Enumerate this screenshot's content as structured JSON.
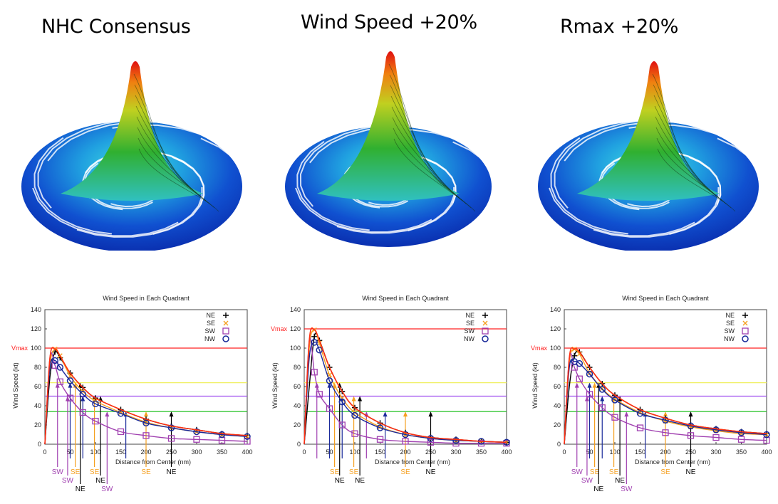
{
  "panels": [
    {
      "title": "NHC Consensus"
    },
    {
      "title": "Wind Speed +20%"
    },
    {
      "title": "Rmax +20%"
    }
  ],
  "quadrant_colors": {
    "NE": "#000000",
    "SE": "#f5a020",
    "SW": "#a040b0",
    "NW": "#1a2a9a"
  },
  "threshold_colors": {
    "vmax": "#ff2020",
    "64": "#f0f060",
    "50": "#a050f0",
    "34": "#20c020"
  },
  "chart_data": [
    {
      "type": "line",
      "title": "Wind Speed in Each Quadrant",
      "xlabel": "Distance from Center (nm)",
      "ylabel": "Wind Speed (kt)",
      "xlim": [
        0,
        400
      ],
      "ylim": [
        0,
        140
      ],
      "xticks": [
        0,
        50,
        100,
        150,
        200,
        250,
        300,
        350,
        400
      ],
      "yticks": [
        0,
        20,
        40,
        60,
        80,
        100,
        120,
        140
      ],
      "legend": "top-right",
      "vmax_label": "Vmax",
      "vmax": 100,
      "thresholds": [
        64,
        50,
        34
      ],
      "x": [
        0,
        10,
        20,
        30,
        50,
        75,
        100,
        150,
        200,
        250,
        300,
        350,
        400
      ],
      "series": [
        {
          "name": "NE",
          "values": [
            0,
            70,
            96,
            90,
            74,
            59,
            48,
            36,
            26,
            19,
            15,
            11,
            9
          ]
        },
        {
          "name": "SE",
          "values": [
            0,
            82,
            99,
            92,
            71,
            55,
            45,
            33,
            23,
            17,
            13,
            10,
            8
          ]
        },
        {
          "name": "SW",
          "values": [
            0,
            90,
            82,
            65,
            48,
            33,
            24,
            13,
            9,
            6,
            5,
            4,
            3
          ]
        },
        {
          "name": "NW",
          "values": [
            0,
            80,
            87,
            80,
            66,
            52,
            42,
            32,
            22,
            17,
            13,
            10,
            8
          ]
        }
      ],
      "radii": [
        {
          "quadrant": "SW",
          "threshold": 64,
          "x": 25,
          "label": "SW"
        },
        {
          "quadrant": "SW",
          "threshold": 50,
          "x": 45,
          "label": "SW"
        },
        {
          "quadrant": "NW",
          "threshold": 64,
          "x": 50,
          "label": ""
        },
        {
          "quadrant": "SE",
          "threshold": 64,
          "x": 60,
          "label": "SE"
        },
        {
          "quadrant": "NE",
          "threshold": 64,
          "x": 70,
          "label": "NE"
        },
        {
          "quadrant": "NW",
          "threshold": 50,
          "x": 75,
          "label": ""
        },
        {
          "quadrant": "SE",
          "threshold": 50,
          "x": 98,
          "label": "SE"
        },
        {
          "quadrant": "NE",
          "threshold": 50,
          "x": 110,
          "label": "NE"
        },
        {
          "quadrant": "SW",
          "threshold": 34,
          "x": 123,
          "label": "SW"
        },
        {
          "quadrant": "NW",
          "threshold": 34,
          "x": 160,
          "label": ""
        },
        {
          "quadrant": "SE",
          "threshold": 34,
          "x": 200,
          "label": "SE"
        },
        {
          "quadrant": "NE",
          "threshold": 34,
          "x": 250,
          "label": "NE"
        }
      ]
    },
    {
      "type": "line",
      "title": "Wind Speed in Each Quadrant",
      "xlabel": "Distance from Center (nm)",
      "ylabel": "Wind Speed (kt)",
      "xlim": [
        0,
        400
      ],
      "ylim": [
        0,
        140
      ],
      "xticks": [
        0,
        50,
        100,
        150,
        200,
        250,
        300,
        350,
        400
      ],
      "yticks": [
        0,
        20,
        40,
        60,
        80,
        100,
        120,
        140
      ],
      "legend": "top-right",
      "vmax_label": "Vmax",
      "vmax": 120,
      "thresholds": [
        64,
        50,
        34
      ],
      "x": [
        0,
        10,
        20,
        30,
        50,
        75,
        100,
        150,
        200,
        250,
        300,
        350,
        400
      ],
      "series": [
        {
          "name": "NE",
          "values": [
            0,
            60,
            112,
            108,
            80,
            55,
            38,
            22,
            12,
            7,
            5,
            3,
            2
          ]
        },
        {
          "name": "SE",
          "values": [
            0,
            100,
            119,
            105,
            72,
            48,
            33,
            18,
            10,
            6,
            4,
            3,
            2
          ]
        },
        {
          "name": "SW",
          "values": [
            0,
            108,
            75,
            52,
            37,
            20,
            11,
            5,
            3,
            2,
            1,
            1,
            1
          ]
        },
        {
          "name": "NW",
          "values": [
            0,
            90,
            106,
            98,
            66,
            44,
            30,
            17,
            10,
            6,
            4,
            3,
            2
          ]
        }
      ],
      "radii": [
        {
          "quadrant": "SW",
          "threshold": 64,
          "x": 25,
          "label": ""
        },
        {
          "quadrant": "NW",
          "threshold": 64,
          "x": 50,
          "label": ""
        },
        {
          "quadrant": "SE",
          "threshold": 64,
          "x": 60,
          "label": "SE"
        },
        {
          "quadrant": "NE",
          "threshold": 64,
          "x": 70,
          "label": "NE"
        },
        {
          "quadrant": "NW",
          "threshold": 50,
          "x": 75,
          "label": ""
        },
        {
          "quadrant": "SE",
          "threshold": 50,
          "x": 98,
          "label": "SE"
        },
        {
          "quadrant": "NE",
          "threshold": 50,
          "x": 110,
          "label": "NE"
        },
        {
          "quadrant": "SW",
          "threshold": 34,
          "x": 123,
          "label": ""
        },
        {
          "quadrant": "NW",
          "threshold": 34,
          "x": 160,
          "label": ""
        },
        {
          "quadrant": "SE",
          "threshold": 34,
          "x": 200,
          "label": "SE"
        },
        {
          "quadrant": "NE",
          "threshold": 34,
          "x": 250,
          "label": "NE"
        }
      ]
    },
    {
      "type": "line",
      "title": "Wind Speed in Each Quadrant",
      "xlabel": "Distance from Center (nm)",
      "ylabel": "Wind Speed (kt)",
      "xlim": [
        0,
        400
      ],
      "ylim": [
        0,
        140
      ],
      "xticks": [
        0,
        50,
        100,
        150,
        200,
        250,
        300,
        350,
        400
      ],
      "yticks": [
        0,
        20,
        40,
        60,
        80,
        100,
        120,
        140
      ],
      "legend": "top-right",
      "vmax_label": "Vmax",
      "vmax": 100,
      "thresholds": [
        64,
        50,
        34
      ],
      "x": [
        0,
        10,
        20,
        30,
        50,
        75,
        100,
        150,
        200,
        250,
        300,
        350,
        400
      ],
      "series": [
        {
          "name": "NE",
          "values": [
            0,
            60,
            92,
            96,
            80,
            63,
            51,
            36,
            27,
            20,
            16,
            13,
            11
          ]
        },
        {
          "name": "SE",
          "values": [
            0,
            85,
            99,
            94,
            74,
            58,
            47,
            33,
            24,
            18,
            14,
            11,
            10
          ]
        },
        {
          "name": "SW",
          "values": [
            0,
            90,
            80,
            68,
            52,
            38,
            28,
            17,
            12,
            9,
            7,
            5,
            4
          ]
        },
        {
          "name": "NW",
          "values": [
            0,
            80,
            86,
            84,
            73,
            57,
            46,
            32,
            25,
            19,
            15,
            12,
            10
          ]
        }
      ],
      "radii": [
        {
          "quadrant": "SW",
          "threshold": 64,
          "x": 25,
          "label": "SW"
        },
        {
          "quadrant": "SW",
          "threshold": 50,
          "x": 45,
          "label": "SW"
        },
        {
          "quadrant": "NW",
          "threshold": 64,
          "x": 50,
          "label": ""
        },
        {
          "quadrant": "SE",
          "threshold": 64,
          "x": 60,
          "label": "SE"
        },
        {
          "quadrant": "NE",
          "threshold": 64,
          "x": 68,
          "label": "NE"
        },
        {
          "quadrant": "NW",
          "threshold": 50,
          "x": 75,
          "label": ""
        },
        {
          "quadrant": "SE",
          "threshold": 50,
          "x": 98,
          "label": "SE"
        },
        {
          "quadrant": "NE",
          "threshold": 50,
          "x": 110,
          "label": "NE"
        },
        {
          "quadrant": "SW",
          "threshold": 34,
          "x": 123,
          "label": "SW"
        },
        {
          "quadrant": "NW",
          "threshold": 34,
          "x": 160,
          "label": ""
        },
        {
          "quadrant": "SE",
          "threshold": 34,
          "x": 200,
          "label": "SE"
        },
        {
          "quadrant": "NE",
          "threshold": 34,
          "x": 250,
          "label": "NE"
        }
      ]
    }
  ]
}
